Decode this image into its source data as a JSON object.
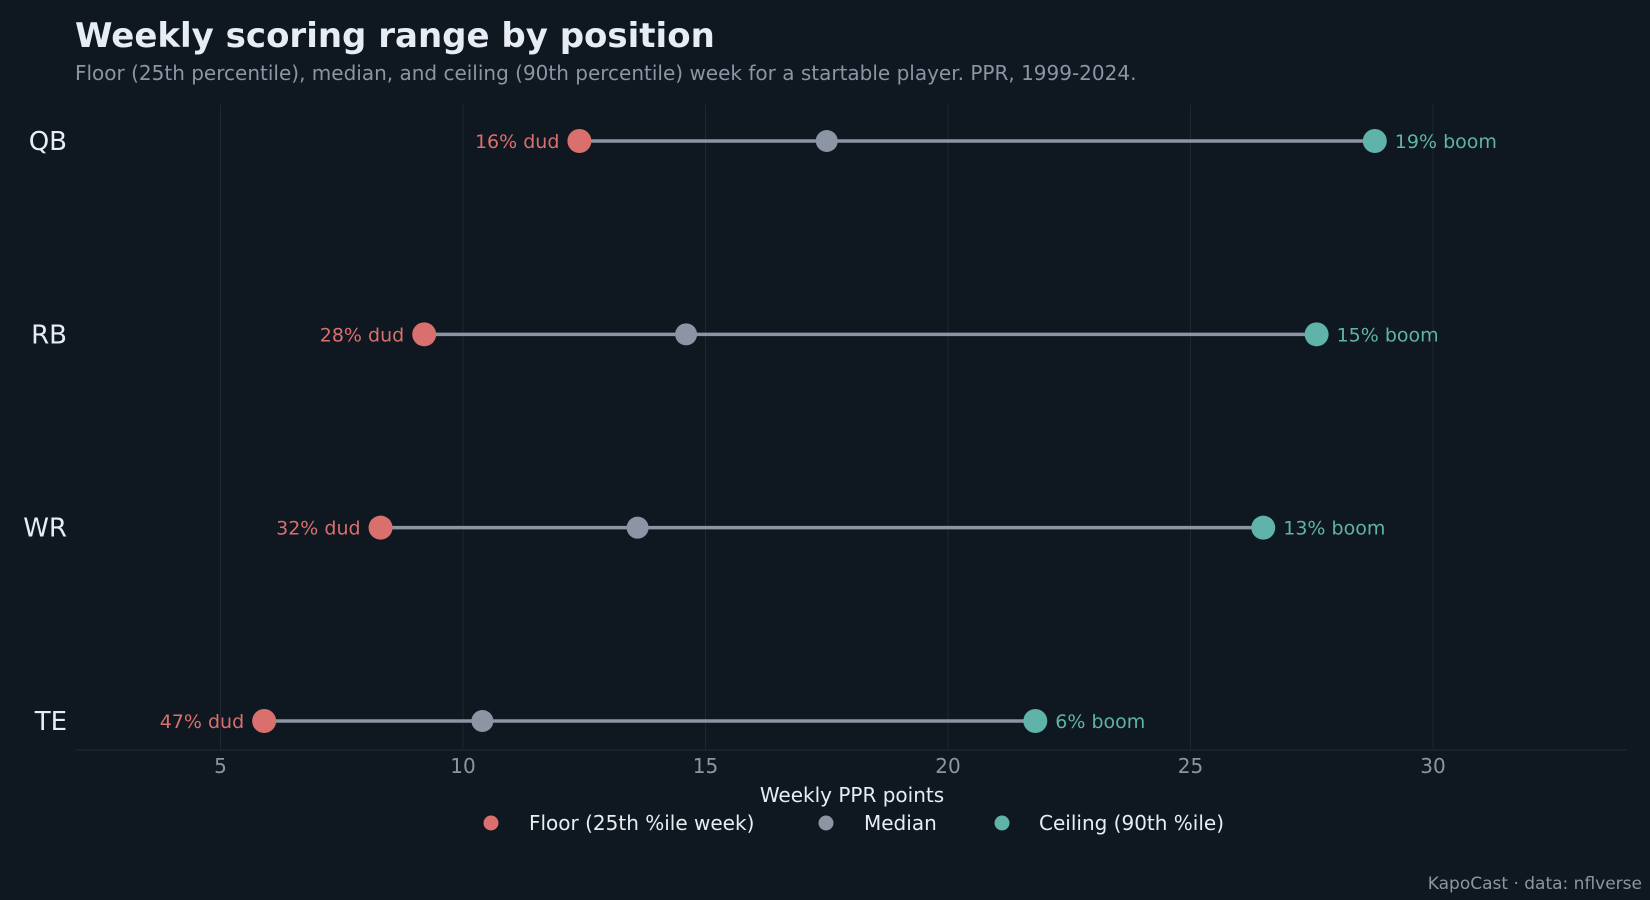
{
  "title": "Weekly scoring range by position",
  "subtitle": "Floor (25th percentile), median, and ceiling (90th percentile) week for a startable player. PPR, 1999-2024.",
  "footer": "KapoCast · data: nflverse",
  "colors": {
    "background": "#0f1720",
    "floor": "#d9706d",
    "median": "#8b95a3",
    "ceiling": "#5fb3a8",
    "range_line": "#8b95a3",
    "grid": "#1e2732",
    "text": "#e8edf5",
    "muted_text": "#8b95a3"
  },
  "chart_data": {
    "type": "scatter",
    "subtype": "dumbbell",
    "title": "Weekly scoring range by position",
    "subtitle": "Floor (25th percentile), median, and ceiling (90th percentile) week for a startable player. PPR, 1999-2024.",
    "xlabel": "Weekly PPR points",
    "ylabel": "",
    "xlim": [
      2,
      34
    ],
    "xticks": [
      5,
      10,
      15,
      20,
      25,
      30
    ],
    "grid": true,
    "categories": [
      "QB",
      "RB",
      "WR",
      "TE"
    ],
    "series": [
      {
        "name": "Floor (25th %ile week)",
        "key": "floor",
        "values": [
          12.4,
          9.2,
          8.3,
          5.9
        ]
      },
      {
        "name": "Median",
        "key": "median",
        "values": [
          17.5,
          14.6,
          13.6,
          10.4
        ]
      },
      {
        "name": "Ceiling (90th %ile)",
        "key": "ceiling",
        "values": [
          28.8,
          27.6,
          26.5,
          21.8
        ]
      }
    ],
    "floor_labels": [
      "16% dud",
      "28% dud",
      "32% dud",
      "47% dud"
    ],
    "ceiling_labels": [
      "19% boom",
      "15% boom",
      "13% boom",
      "6% boom"
    ],
    "legend": {
      "placement": "bottom-center",
      "entries": [
        "Floor (25th %ile week)",
        "Median",
        "Ceiling (90th %ile)"
      ]
    }
  }
}
